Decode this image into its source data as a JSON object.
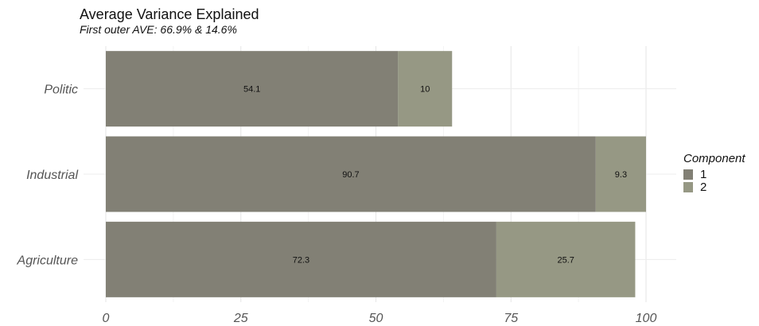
{
  "chart_data": {
    "type": "bar",
    "orientation": "horizontal",
    "stacked": true,
    "title": "Average Variance Explained",
    "subtitle": "First outer AVE: 66.9% & 14.6%",
    "categories": [
      "Politic",
      "Industrial",
      "Agriculture"
    ],
    "series": [
      {
        "name": "1",
        "values": [
          54.1,
          90.7,
          72.3
        ],
        "color": "#828075"
      },
      {
        "name": "2",
        "values": [
          10,
          9.3,
          25.7
        ],
        "color": "#969884"
      }
    ],
    "xlim": [
      0,
      105
    ],
    "x_ticks": [
      0,
      25,
      50,
      75,
      100
    ],
    "x_tick_labels": [
      "0",
      "25",
      "50",
      "75",
      "100"
    ],
    "xlabel": "",
    "ylabel": "",
    "grid": true,
    "legend": {
      "title": "Component",
      "position": "right"
    }
  }
}
